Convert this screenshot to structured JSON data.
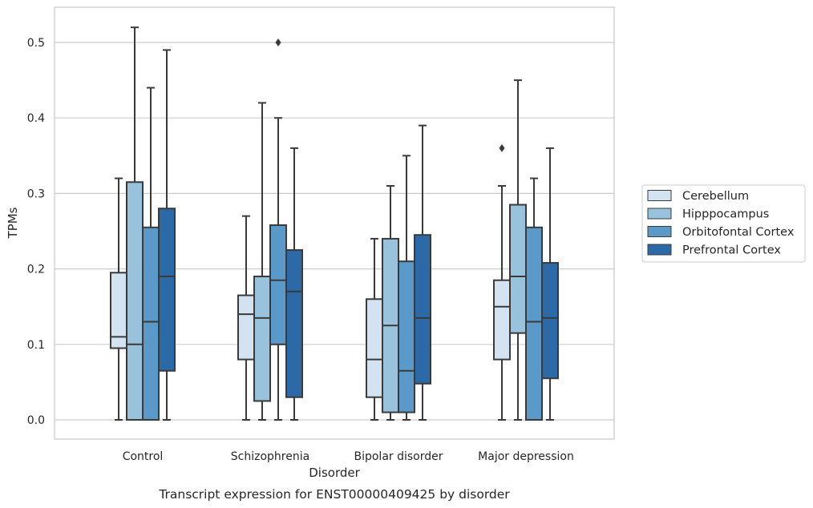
{
  "chart_data": {
    "type": "boxplot",
    "caption": "Transcript expression for ENST00000409425 by disorder",
    "xlabel": "Disorder",
    "ylabel": "TPMs",
    "ylim": [
      -0.025,
      0.548
    ],
    "yticks": [
      0.0,
      0.1,
      0.2,
      0.3,
      0.4,
      0.5
    ],
    "ytick_labels": [
      "0.0",
      "0.1",
      "0.2",
      "0.3",
      "0.4",
      "0.5"
    ],
    "grid": true,
    "legend_position": "right",
    "categories": [
      "Control",
      "Schizophrenia",
      "Bipolar disorder",
      "Major depression"
    ],
    "series": [
      {
        "name": "Cerebellum",
        "color": "#d4e3f2",
        "boxes": [
          {
            "whislo": 0.0,
            "q1": 0.095,
            "med": 0.11,
            "q3": 0.195,
            "whishi": 0.32,
            "fliers": []
          },
          {
            "whislo": 0.0,
            "q1": 0.08,
            "med": 0.14,
            "q3": 0.165,
            "whishi": 0.27,
            "fliers": []
          },
          {
            "whislo": 0.0,
            "q1": 0.03,
            "med": 0.08,
            "q3": 0.16,
            "whishi": 0.24,
            "fliers": []
          },
          {
            "whislo": 0.0,
            "q1": 0.08,
            "med": 0.15,
            "q3": 0.185,
            "whishi": 0.31,
            "fliers": [
              0.36
            ]
          }
        ]
      },
      {
        "name": "Hipppocampus",
        "color": "#99c3dc",
        "boxes": [
          {
            "whislo": 0.0,
            "q1": 0.0,
            "med": 0.1,
            "q3": 0.315,
            "whishi": 0.52,
            "fliers": []
          },
          {
            "whislo": 0.0,
            "q1": 0.025,
            "med": 0.135,
            "q3": 0.19,
            "whishi": 0.42,
            "fliers": []
          },
          {
            "whislo": 0.0,
            "q1": 0.01,
            "med": 0.125,
            "q3": 0.24,
            "whishi": 0.31,
            "fliers": []
          },
          {
            "whislo": 0.0,
            "q1": 0.115,
            "med": 0.19,
            "q3": 0.285,
            "whishi": 0.45,
            "fliers": []
          }
        ]
      },
      {
        "name": "Orbitofontal Cortex",
        "color": "#5b9ac8",
        "boxes": [
          {
            "whislo": 0.0,
            "q1": 0.0,
            "med": 0.13,
            "q3": 0.255,
            "whishi": 0.44,
            "fliers": []
          },
          {
            "whislo": 0.0,
            "q1": 0.1,
            "med": 0.185,
            "q3": 0.258,
            "whishi": 0.4,
            "fliers": [
              0.5
            ]
          },
          {
            "whislo": 0.0,
            "q1": 0.01,
            "med": 0.065,
            "q3": 0.21,
            "whishi": 0.35,
            "fliers": []
          },
          {
            "whislo": 0.0,
            "q1": 0.0,
            "med": 0.13,
            "q3": 0.255,
            "whishi": 0.32,
            "fliers": []
          }
        ]
      },
      {
        "name": "Prefrontal Cortex",
        "color": "#2b6aa7",
        "boxes": [
          {
            "whislo": 0.0,
            "q1": 0.065,
            "med": 0.19,
            "q3": 0.28,
            "whishi": 0.49,
            "fliers": []
          },
          {
            "whislo": 0.0,
            "q1": 0.03,
            "med": 0.17,
            "q3": 0.225,
            "whishi": 0.36,
            "fliers": []
          },
          {
            "whislo": 0.0,
            "q1": 0.048,
            "med": 0.135,
            "q3": 0.245,
            "whishi": 0.39,
            "fliers": []
          },
          {
            "whislo": 0.0,
            "q1": 0.055,
            "med": 0.135,
            "q3": 0.208,
            "whishi": 0.36,
            "fliers": []
          }
        ]
      }
    ]
  }
}
